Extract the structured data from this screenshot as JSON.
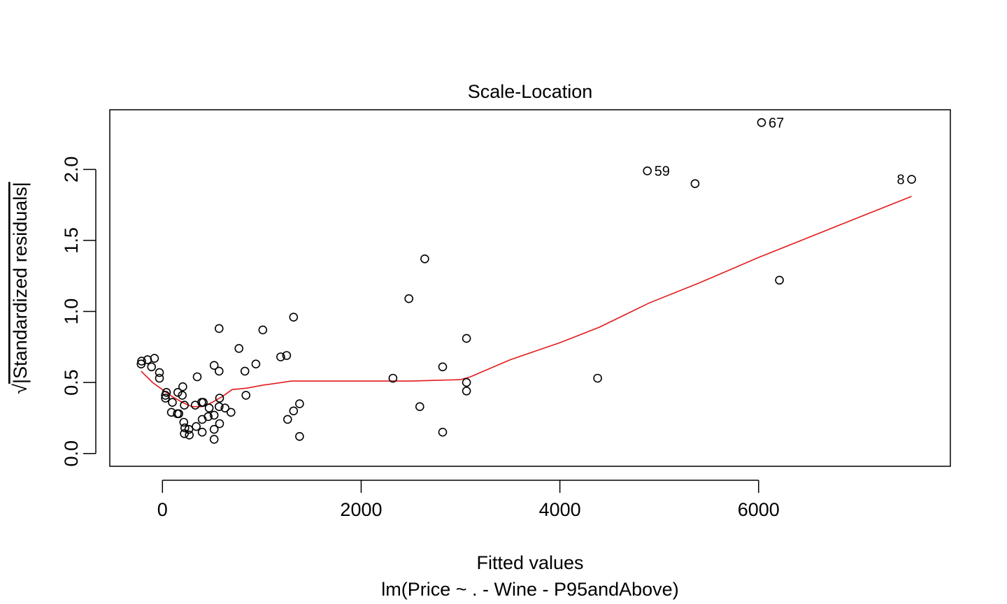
{
  "chart_data": {
    "type": "scatter",
    "title": "Scale-Location",
    "xlabel": "Fitted values",
    "xlabel_sub": "lm(Price ~ . - Wine - P95andAbove)",
    "ylabel_radical": "√",
    "ylabel": "|Standardized residuals|",
    "xlim": [
      -530,
      7930
    ],
    "ylim": [
      -0.09,
      2.42
    ],
    "xticks": [
      0,
      2000,
      4000,
      6000
    ],
    "xtick_labels": [
      "0",
      "2000",
      "4000",
      "6000"
    ],
    "yticks": [
      0.0,
      0.5,
      1.0,
      1.5,
      2.0
    ],
    "ytick_labels": [
      "0.0",
      "0.5",
      "1.0",
      "1.5",
      "2.0"
    ],
    "grid": false,
    "point_color": "#000000",
    "line_color": "#e31a1c",
    "points": [
      {
        "x": -215,
        "y": 0.63
      },
      {
        "x": -210,
        "y": 0.65
      },
      {
        "x": -150,
        "y": 0.66
      },
      {
        "x": -110,
        "y": 0.61
      },
      {
        "x": -80,
        "y": 0.67
      },
      {
        "x": -30,
        "y": 0.57
      },
      {
        "x": -30,
        "y": 0.53
      },
      {
        "x": 30,
        "y": 0.41
      },
      {
        "x": 30,
        "y": 0.39
      },
      {
        "x": 40,
        "y": 0.43
      },
      {
        "x": 90,
        "y": 0.29
      },
      {
        "x": 100,
        "y": 0.36
      },
      {
        "x": 150,
        "y": 0.28
      },
      {
        "x": 155,
        "y": 0.43
      },
      {
        "x": 165,
        "y": 0.28
      },
      {
        "x": 205,
        "y": 0.47
      },
      {
        "x": 200,
        "y": 0.41
      },
      {
        "x": 220,
        "y": 0.34
      },
      {
        "x": 215,
        "y": 0.22
      },
      {
        "x": 225,
        "y": 0.18
      },
      {
        "x": 220,
        "y": 0.14
      },
      {
        "x": 265,
        "y": 0.17
      },
      {
        "x": 270,
        "y": 0.13
      },
      {
        "x": 330,
        "y": 0.34
      },
      {
        "x": 340,
        "y": 0.19
      },
      {
        "x": 350,
        "y": 0.54
      },
      {
        "x": 395,
        "y": 0.36
      },
      {
        "x": 400,
        "y": 0.24
      },
      {
        "x": 400,
        "y": 0.15
      },
      {
        "x": 410,
        "y": 0.36
      },
      {
        "x": 460,
        "y": 0.26
      },
      {
        "x": 470,
        "y": 0.32
      },
      {
        "x": 520,
        "y": 0.62
      },
      {
        "x": 520,
        "y": 0.27
      },
      {
        "x": 520,
        "y": 0.17
      },
      {
        "x": 520,
        "y": 0.1
      },
      {
        "x": 570,
        "y": 0.88
      },
      {
        "x": 570,
        "y": 0.58
      },
      {
        "x": 575,
        "y": 0.39
      },
      {
        "x": 570,
        "y": 0.33
      },
      {
        "x": 575,
        "y": 0.21
      },
      {
        "x": 630,
        "y": 0.32
      },
      {
        "x": 690,
        "y": 0.29
      },
      {
        "x": 770,
        "y": 0.74
      },
      {
        "x": 830,
        "y": 0.58
      },
      {
        "x": 840,
        "y": 0.41
      },
      {
        "x": 940,
        "y": 0.63
      },
      {
        "x": 1010,
        "y": 0.87
      },
      {
        "x": 1190,
        "y": 0.68
      },
      {
        "x": 1250,
        "y": 0.69
      },
      {
        "x": 1260,
        "y": 0.24
      },
      {
        "x": 1320,
        "y": 0.96
      },
      {
        "x": 1320,
        "y": 0.3
      },
      {
        "x": 1380,
        "y": 0.35
      },
      {
        "x": 1380,
        "y": 0.12
      },
      {
        "x": 2320,
        "y": 0.53
      },
      {
        "x": 2480,
        "y": 1.09
      },
      {
        "x": 2590,
        "y": 0.33
      },
      {
        "x": 2640,
        "y": 1.37
      },
      {
        "x": 2820,
        "y": 0.61
      },
      {
        "x": 2820,
        "y": 0.15
      },
      {
        "x": 3060,
        "y": 0.81
      },
      {
        "x": 3060,
        "y": 0.5
      },
      {
        "x": 3060,
        "y": 0.44
      },
      {
        "x": 4380,
        "y": 0.53
      },
      {
        "x": 4880,
        "y": 1.99
      },
      {
        "x": 5360,
        "y": 1.9
      },
      {
        "x": 6030,
        "y": 2.33
      },
      {
        "x": 6210,
        "y": 1.22
      },
      {
        "x": 7540,
        "y": 1.93
      }
    ],
    "point_labels": [
      {
        "text": "67",
        "x": 6030,
        "y": 2.33,
        "side": "right"
      },
      {
        "text": "59",
        "x": 4880,
        "y": 1.99,
        "side": "right"
      },
      {
        "text": "8",
        "x": 7540,
        "y": 1.93,
        "side": "left"
      }
    ],
    "smooth_line": [
      {
        "x": -215,
        "y": 0.58
      },
      {
        "x": -100,
        "y": 0.5
      },
      {
        "x": 0,
        "y": 0.45
      },
      {
        "x": 100,
        "y": 0.4
      },
      {
        "x": 200,
        "y": 0.36
      },
      {
        "x": 300,
        "y": 0.33
      },
      {
        "x": 400,
        "y": 0.33
      },
      {
        "x": 500,
        "y": 0.36
      },
      {
        "x": 600,
        "y": 0.4
      },
      {
        "x": 700,
        "y": 0.45
      },
      {
        "x": 850,
        "y": 0.46
      },
      {
        "x": 1000,
        "y": 0.48
      },
      {
        "x": 1300,
        "y": 0.51
      },
      {
        "x": 2000,
        "y": 0.51
      },
      {
        "x": 2500,
        "y": 0.51
      },
      {
        "x": 3000,
        "y": 0.52
      },
      {
        "x": 3100,
        "y": 0.54
      },
      {
        "x": 3500,
        "y": 0.66
      },
      {
        "x": 4000,
        "y": 0.78
      },
      {
        "x": 4400,
        "y": 0.89
      },
      {
        "x": 4900,
        "y": 1.06
      },
      {
        "x": 5400,
        "y": 1.2
      },
      {
        "x": 6000,
        "y": 1.38
      },
      {
        "x": 6500,
        "y": 1.52
      },
      {
        "x": 7000,
        "y": 1.66
      },
      {
        "x": 7540,
        "y": 1.81
      }
    ]
  }
}
